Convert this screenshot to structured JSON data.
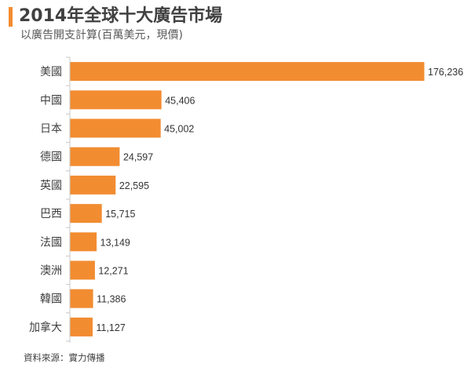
{
  "header": {
    "title": "2014年全球十大廣告市場",
    "subtitle": "以廣告開支計算(百萬美元，現價)"
  },
  "footer": {
    "source": "資料來源：實力傳播"
  },
  "colors": {
    "bar": "#f28c31",
    "axis": "#c8c8c8"
  },
  "chart_data": {
    "type": "bar",
    "orientation": "horizontal",
    "title": "2014年全球十大廣告市場",
    "subtitle": "以廣告開支計算(百萬美元，現價)",
    "categories": [
      "美國",
      "中國",
      "日本",
      "德國",
      "英國",
      "巴西",
      "法國",
      "澳洲",
      "韓國",
      "加拿大"
    ],
    "values": [
      176236,
      45406,
      45002,
      24597,
      22595,
      15715,
      13149,
      12271,
      11386,
      11127
    ],
    "value_labels": [
      "176,236",
      "45,406",
      "45,002",
      "24,597",
      "22,595",
      "15,715",
      "13,149",
      "12,271",
      "11,386",
      "11,127"
    ],
    "xlim": [
      0,
      180000
    ],
    "grid": false,
    "legend": "none"
  }
}
